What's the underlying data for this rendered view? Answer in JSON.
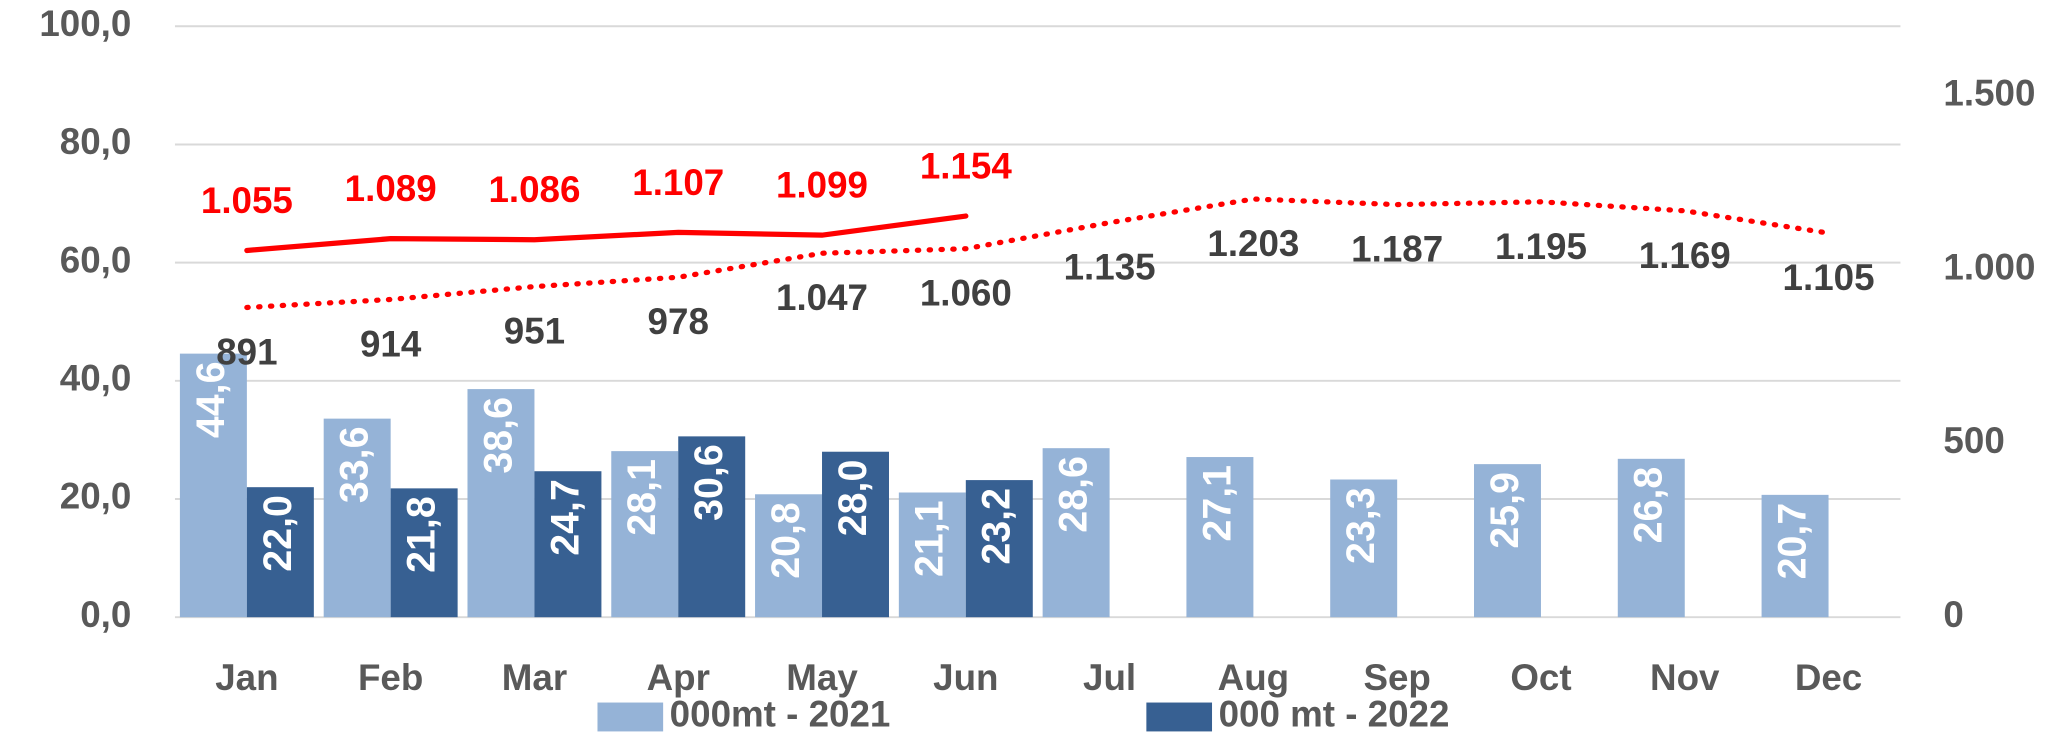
{
  "chart_data": {
    "type": "bar",
    "categories": [
      "Jan",
      "Feb",
      "Mar",
      "Apr",
      "May",
      "Jun",
      "Jul",
      "Aug",
      "Sep",
      "Oct",
      "Nov",
      "Dec"
    ],
    "ylim": [
      0,
      100
    ],
    "yticks": [
      {
        "value": 0,
        "label": "0,0"
      },
      {
        "value": 20,
        "label": "20,0"
      },
      {
        "value": 40,
        "label": "40,0"
      },
      {
        "value": 60,
        "label": "60,0"
      },
      {
        "value": 80,
        "label": "80,0"
      },
      {
        "value": 100,
        "label": "100,0"
      }
    ],
    "y2lim": [
      0,
      1700
    ],
    "y2ticks": [
      0,
      500,
      {
        "value": 1000,
        "label": "1.000"
      },
      {
        "value": 1500,
        "label": "1.500"
      }
    ],
    "grid": true,
    "legend": "bottom",
    "series": [
      {
        "name": "000mt - 2021",
        "color": "#95b3d7",
        "values": [
          44.6,
          33.6,
          38.6,
          28.1,
          20.8,
          21.1,
          28.6,
          27.1,
          23.3,
          25.9,
          26.8,
          20.7
        ],
        "value_labels": [
          "44,6",
          "33,6",
          "38,6",
          "28,1",
          "20,8",
          "21,1",
          "28,6",
          "27,1",
          "23,3",
          "25,9",
          "26,8",
          "20,7"
        ]
      },
      {
        "name": "000 mt - 2022",
        "color": "#376092",
        "values": [
          22.0,
          21.8,
          24.7,
          30.6,
          28.0,
          23.2,
          null,
          null,
          null,
          null,
          null,
          null
        ],
        "value_labels": [
          "22,0",
          "21,8",
          "24,7",
          "30,6",
          "28,0",
          "23,2",
          null,
          null,
          null,
          null,
          null,
          null
        ]
      },
      {
        "type": "line",
        "axis": "y2",
        "color": "#ff0000",
        "style": "solid",
        "label_color": "#ff0000",
        "values": [
          1055,
          1089,
          1086,
          1107,
          1099,
          1154,
          null,
          null,
          null,
          null,
          null,
          null
        ],
        "value_labels": [
          "1.055",
          "1.089",
          "1.086",
          "1.107",
          "1.099",
          "1.154",
          null,
          null,
          null,
          null,
          null,
          null
        ]
      },
      {
        "type": "line",
        "axis": "y2",
        "color": "#ff0000",
        "style": "dotted",
        "label_color": "#404040",
        "values": [
          891,
          914,
          951,
          978,
          1047,
          1060,
          1135,
          1203,
          1187,
          1195,
          1169,
          1105
        ],
        "value_labels": [
          "891",
          "914",
          "951",
          "978",
          "1.047",
          "1.060",
          "1.135",
          "1.203",
          "1.187",
          "1.195",
          "1.169",
          "1.105"
        ]
      }
    ]
  }
}
